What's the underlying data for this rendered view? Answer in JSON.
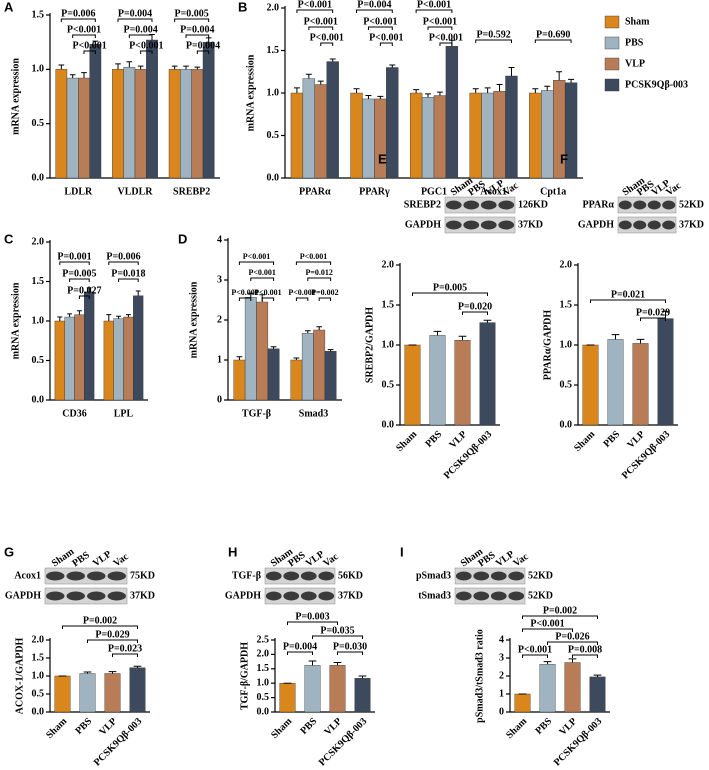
{
  "chart_data": [
    {
      "type": "bar",
      "panel": "A",
      "ylabel": "mRNA expression",
      "categories": [
        "LDLR",
        "VLDLR",
        "SREBP2"
      ],
      "series": [
        {
          "color": "#d9861c",
          "values": [
            1.0,
            1.0,
            1.0
          ],
          "errors": [
            0.04,
            0.05,
            0.03
          ]
        },
        {
          "color": "#9fb4c0",
          "values": [
            0.92,
            1.02,
            1.0
          ],
          "errors": [
            0.03,
            0.05,
            0.03
          ]
        },
        {
          "color": "#b87d57",
          "values": [
            0.92,
            1.0,
            1.0
          ],
          "errors": [
            0.05,
            0.03,
            0.02
          ]
        },
        {
          "color": "#3d4a5e",
          "values": [
            1.23,
            1.27,
            1.25
          ],
          "errors": [
            0.03,
            0.05,
            0.04
          ]
        }
      ],
      "ylim": [
        0,
        1.5
      ],
      "yticks": [
        {
          "value": 0,
          "label": "0.0"
        },
        0.5,
        {
          "value": 1,
          "label": "1.0"
        },
        1.5
      ],
      "annotations": [
        "P=0.006",
        "P<0.001",
        "P<0.001",
        "P=0.004",
        "P=0.004",
        "P<0.001",
        "P=0.005",
        "P=0.004",
        "P=0.004"
      ]
    },
    {
      "type": "bar",
      "panel": "B",
      "ylabel": "mRNA expression",
      "categories": [
        "PPARα",
        "PPARγ",
        "PGC1",
        "Acox1",
        "Cpt1a"
      ],
      "series": [
        {
          "name": "Sham",
          "color": "#d9861c",
          "values": [
            1.0,
            1.0,
            1.0,
            1.0,
            1.0
          ],
          "errors": [
            0.06,
            0.05,
            0.04,
            0.05,
            0.05
          ]
        },
        {
          "name": "PBS",
          "color": "#9fb4c0",
          "values": [
            1.17,
            0.93,
            0.95,
            1.0,
            1.03
          ],
          "errors": [
            0.05,
            0.04,
            0.04,
            0.06,
            0.05
          ]
        },
        {
          "name": "VLP",
          "color": "#b87d57",
          "values": [
            1.1,
            0.93,
            0.97,
            1.02,
            1.15
          ],
          "errors": [
            0.04,
            0.03,
            0.04,
            0.08,
            0.1
          ]
        },
        {
          "name": "PCSK9Qβ-003",
          "color": "#3d4a5e",
          "values": [
            1.37,
            1.3,
            1.55,
            1.2,
            1.12
          ],
          "errors": [
            0.03,
            0.03,
            0.07,
            0.1,
            0.04
          ]
        }
      ],
      "ylim": [
        0,
        2
      ],
      "yticks": [
        {
          "value": 0,
          "label": "0.0"
        },
        0.5,
        {
          "value": 1,
          "label": "1.0"
        },
        1.5,
        {
          "value": 2,
          "label": "2.0"
        }
      ],
      "annotations": [
        "P<0.001",
        "P<0.001",
        "P<0.001",
        "P=0.004",
        "P<0.001",
        "P<0.001",
        "P<0.001",
        "P<0.001",
        "P<0.001",
        "P=0.592",
        "P=0.690"
      ]
    },
    {
      "type": "bar",
      "panel": "C",
      "ylabel": "mRNA expression",
      "categories": [
        "CD36",
        "LPL"
      ],
      "series": [
        {
          "color": "#d9861c",
          "values": [
            1.0,
            1.0
          ],
          "errors": [
            0.05,
            0.08
          ]
        },
        {
          "color": "#9fb4c0",
          "values": [
            1.05,
            1.03
          ],
          "errors": [
            0.04,
            0.03
          ]
        },
        {
          "color": "#b87d57",
          "values": [
            1.08,
            1.05
          ],
          "errors": [
            0.05,
            0.03
          ]
        },
        {
          "color": "#3d4a5e",
          "values": [
            1.37,
            1.32
          ],
          "errors": [
            0.05,
            0.06
          ]
        }
      ],
      "ylim": [
        0,
        2
      ],
      "yticks": [
        {
          "value": 0,
          "label": "0.0"
        },
        0.5,
        {
          "value": 1,
          "label": "1.0"
        },
        1.5,
        {
          "value": 2,
          "label": "2.0"
        }
      ],
      "annotations": [
        "P=0.001",
        "P=0.005",
        "P=0.027",
        "P=0.006",
        "P=0.018"
      ]
    },
    {
      "type": "bar",
      "panel": "D",
      "ylabel": "mRNA expression",
      "categories": [
        "TGF-β",
        "Smad3"
      ],
      "series": [
        {
          "color": "#d9861c",
          "values": [
            1.0,
            1.0
          ],
          "errors": [
            0.08,
            0.05
          ]
        },
        {
          "color": "#9fb4c0",
          "values": [
            2.57,
            1.67
          ],
          "errors": [
            0.1,
            0.06
          ]
        },
        {
          "color": "#b87d57",
          "values": [
            2.45,
            1.75
          ],
          "errors": [
            0.18,
            0.08
          ]
        },
        {
          "color": "#3d4a5e",
          "values": [
            1.28,
            1.22
          ],
          "errors": [
            0.05,
            0.04
          ]
        }
      ],
      "ylim": [
        0,
        4
      ],
      "yticks": [
        0,
        1,
        2,
        3,
        4
      ],
      "annotations": [
        "P<0.001",
        "P<0.001",
        "P<0.001",
        "P<0.001",
        "P<0.001",
        "P=0.012",
        "P<0.001",
        "P=0.002"
      ]
    },
    {
      "type": "bar",
      "panel": "E",
      "ylabel": "SREBP2/GAPDH",
      "categories": [
        "Sham",
        "PBS",
        "VLP",
        "PCSK9Qβ-003"
      ],
      "colors": [
        "#d9861c",
        "#9fb4c0",
        "#b87d57",
        "#3d4a5e"
      ],
      "values": [
        1.0,
        1.12,
        1.06,
        1.28
      ],
      "errors": [
        0.0,
        0.05,
        0.05,
        0.03
      ],
      "ylim": [
        0,
        2
      ],
      "yticks": [
        {
          "value": 0,
          "label": "0.0"
        },
        0.5,
        {
          "value": 1,
          "label": "1.0"
        },
        1.5,
        {
          "value": 2,
          "label": "2.0"
        }
      ],
      "annotations": [
        "P=0.005",
        "P=0.020"
      ],
      "blot": {
        "lanes": [
          "Sham",
          "PBS",
          "VLP",
          "Vac"
        ],
        "rows": [
          {
            "label": "SREBP2",
            "size": "126KD"
          },
          {
            "label": "GAPDH",
            "size": "37KD"
          }
        ]
      }
    },
    {
      "type": "bar",
      "panel": "F",
      "ylabel": "PPARα/GAPDH",
      "categories": [
        "Sham",
        "PBS",
        "VLP",
        "PCSK9Qβ-003"
      ],
      "colors": [
        "#d9861c",
        "#9fb4c0",
        "#b87d57",
        "#3d4a5e"
      ],
      "values": [
        1.0,
        1.07,
        1.02,
        1.33
      ],
      "errors": [
        0.0,
        0.06,
        0.05,
        0.09
      ],
      "ylim": [
        0,
        2
      ],
      "yticks": [
        {
          "value": 0,
          "label": "0.0"
        },
        0.5,
        {
          "value": 1,
          "label": "1.0"
        },
        1.5,
        {
          "value": 2,
          "label": "2.0"
        }
      ],
      "annotations": [
        "P=0.021",
        "P=0.029"
      ],
      "blot": {
        "lanes": [
          "Sham",
          "PBS",
          "VLP",
          "Vac"
        ],
        "rows": [
          {
            "label": "PPARα",
            "size": "52KD"
          },
          {
            "label": "GAPDH",
            "size": "37KD"
          }
        ]
      }
    },
    {
      "type": "bar",
      "panel": "G",
      "ylabel": "ACOX-1/GAPDH",
      "categories": [
        "Sham",
        "PBS",
        "VLP",
        "PCSK9Qβ-003"
      ],
      "colors": [
        "#d9861c",
        "#9fb4c0",
        "#b87d57",
        "#3d4a5e"
      ],
      "values": [
        1.0,
        1.07,
        1.07,
        1.23
      ],
      "errors": [
        0.0,
        0.04,
        0.05,
        0.04
      ],
      "ylim": [
        0,
        2
      ],
      "yticks": [
        {
          "value": 0,
          "label": "0.0"
        },
        0.5,
        {
          "value": 1,
          "label": "1.0"
        },
        1.5,
        {
          "value": 2,
          "label": "2.0"
        }
      ],
      "annotations": [
        "P=0.002",
        "P=0.029",
        "P=0.023"
      ],
      "blot": {
        "lanes": [
          "Sham",
          "PBS",
          "VLP",
          "Vac"
        ],
        "rows": [
          {
            "label": "Acox1",
            "size": "75KD"
          },
          {
            "label": "GAPDH",
            "size": "37KD"
          }
        ]
      }
    },
    {
      "type": "bar",
      "panel": "H",
      "ylabel": "TGF-β/GAPDH",
      "categories": [
        "Sham",
        "PBS",
        "VLP",
        "PCSK9Qβ-003"
      ],
      "colors": [
        "#d9861c",
        "#9fb4c0",
        "#b87d57",
        "#3d4a5e"
      ],
      "values": [
        1.0,
        1.62,
        1.62,
        1.17
      ],
      "errors": [
        0.0,
        0.15,
        0.1,
        0.08
      ],
      "ylim": [
        0,
        2.5
      ],
      "yticks": [
        {
          "value": 0,
          "label": "0.0"
        },
        0.5,
        {
          "value": 1,
          "label": "1.0"
        },
        1.5,
        {
          "value": 2,
          "label": "2.0"
        },
        2.5
      ],
      "annotations": [
        "P=0.003",
        "P=0.035",
        "P=0.004",
        "P=0.030"
      ],
      "blot": {
        "lanes": [
          "Sham",
          "PBS",
          "VLP",
          "Vac"
        ],
        "rows": [
          {
            "label": "TGF-β",
            "size": "56KD"
          },
          {
            "label": "GAPDH",
            "size": "37KD"
          }
        ]
      }
    },
    {
      "type": "bar",
      "panel": "I",
      "ylabel": "pSmad3/tSmad3 ratio",
      "categories": [
        "Sham",
        "PBS",
        "VLP",
        "PCSK9Qβ-003"
      ],
      "colors": [
        "#d9861c",
        "#9fb4c0",
        "#b87d57",
        "#3d4a5e"
      ],
      "values": [
        1.0,
        2.65,
        2.75,
        1.95
      ],
      "errors": [
        0.0,
        0.15,
        0.2,
        0.1
      ],
      "ylim": [
        0,
        4
      ],
      "yticks": [
        0,
        1,
        2,
        3,
        4
      ],
      "annotations": [
        "P=0.002",
        "P<0.001",
        "P=0.026",
        "P<0.001",
        "P=0.008"
      ],
      "blot": {
        "lanes": [
          "Sham",
          "PBS",
          "VLP",
          "Vac"
        ],
        "rows": [
          {
            "label": "pSmad3",
            "size": "52KD"
          },
          {
            "label": "tSmad3",
            "size": "52KD"
          }
        ]
      }
    }
  ]
}
